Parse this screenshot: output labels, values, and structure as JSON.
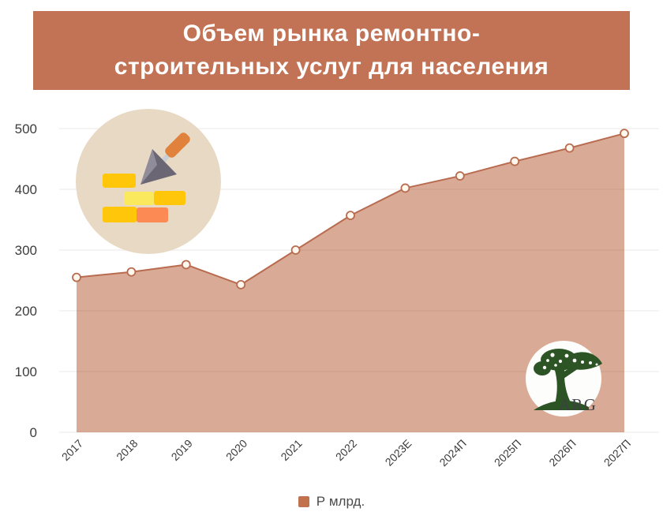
{
  "title": {
    "line1": "Объем рынка ремонтно-",
    "line2": "строительных услуг для населения",
    "bg_color": "#C27355",
    "text_color": "#FFFFFF"
  },
  "chart_data": {
    "type": "area",
    "title": "Объем рынка ремонтно-строительных услуг для населения",
    "categories": [
      "2017",
      "2018",
      "2019",
      "2020",
      "2021",
      "2022",
      "2023Е",
      "2024П",
      "2025П",
      "2026П",
      "2027П"
    ],
    "values": [
      255,
      264,
      276,
      243,
      300,
      357,
      402,
      422,
      446,
      468,
      492
    ],
    "series_name": "Р млрд.",
    "xlabel": "",
    "ylabel": "",
    "ylim": [
      0,
      500
    ],
    "yticks": [
      0,
      100,
      200,
      300,
      400,
      500
    ],
    "x_tick_rotation": -45,
    "grid": true,
    "legend_position": "bottom",
    "colors": {
      "fill": "#D9AA96",
      "line": "#B96B4F",
      "marker_fill": "#FEF7ED",
      "marker_stroke": "#B96B4F",
      "grid": "rgba(90,70,60,0.12)",
      "tick": "#3C3C3C"
    }
  },
  "legend": {
    "label": "Р млрд.",
    "swatch_color": "#C2714E"
  },
  "logo": {
    "text": "ARG"
  },
  "icons": {
    "construction": "bricks-and-trowel-icon",
    "logo": "tree-logo-icon"
  }
}
